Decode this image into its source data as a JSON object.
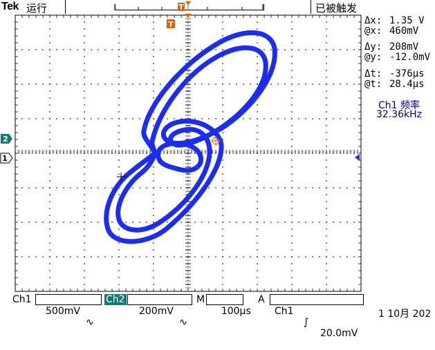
{
  "top_bar": {
    "brand": "Tek",
    "run_state": "运行",
    "trigger_state": "已被触发",
    "trigger_position_marker": "T"
  },
  "display": {
    "mode": "XY",
    "trigger_marker": "T",
    "ch2_marker": "2",
    "ch1_marker": "1",
    "cursor_crosshair": "+",
    "trace_color": "#1c2cf0",
    "grid_color": "#000000",
    "ch2_color": "#17787a"
  },
  "cursor_readouts": {
    "dx_label": "Δx:",
    "dx_value": "1.35 V",
    "atx_label": "@x:",
    "atx_value": "460mV",
    "dy_label": "Δy:",
    "dy_value": "208mV",
    "aty_label": "@y:",
    "aty_value": "-12.0mV",
    "dt_label": "Δt:",
    "dt_value": "-376μs",
    "att_label": "@t:",
    "att_value": "28.4μs"
  },
  "measurement": {
    "label": "Ch1 频率",
    "value": "32.36kHz"
  },
  "status_bar": {
    "ch1_label": "Ch1",
    "ch1_scale": "500mV",
    "ch1_coupling_icon": "∿",
    "ch2_label": "Ch2",
    "ch2_scale": "200mV",
    "ch2_coupling_icon": "∿",
    "time_label": "M",
    "time_scale": "100μs",
    "trigger_mode": "A",
    "trigger_source": "Ch1",
    "trigger_slope_icon": "∫",
    "trigger_level": "20.0mV"
  },
  "date": "1 10月 202"
}
